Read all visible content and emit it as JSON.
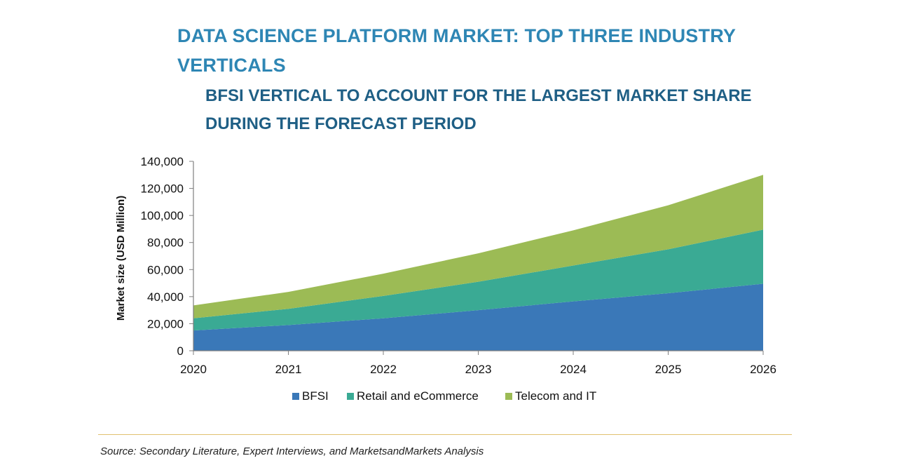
{
  "header": {
    "title": "DATA SCIENCE PLATFORM MARKET: TOP THREE INDUSTRY VERTICALS",
    "subtitle": "BFSI VERTICAL TO ACCOUNT FOR THE LARGEST MARKET SHARE DURING THE FORECAST PERIOD"
  },
  "chart_data": {
    "type": "area",
    "stacked": true,
    "title": "DATA SCIENCE PLATFORM MARKET: TOP THREE INDUSTRY VERTICALS",
    "subtitle": "BFSI VERTICAL TO ACCOUNT FOR THE LARGEST MARKET SHARE DURING THE FORECAST PERIOD",
    "xlabel": "",
    "ylabel": "Market size (USD Million)",
    "categories": [
      "2020",
      "2021",
      "2022",
      "2023",
      "2024",
      "2025",
      "2026"
    ],
    "ylim": [
      0,
      140000
    ],
    "yticks": [
      0,
      20000,
      40000,
      60000,
      80000,
      100000,
      120000,
      140000
    ],
    "ytick_labels": [
      "0",
      "20,000",
      "40,000",
      "60,000",
      "80,000",
      "100,000",
      "120,000",
      "140,000"
    ],
    "series": [
      {
        "name": "BFSI",
        "color": "#3a78b8",
        "values": [
          15000,
          19000,
          24000,
          30000,
          36500,
          42500,
          49500
        ]
      },
      {
        "name": "Retail and eCommerce",
        "color": "#3aaa94",
        "values": [
          9000,
          12000,
          16500,
          21000,
          26500,
          32500,
          40000
        ]
      },
      {
        "name": "Telecom and IT",
        "color": "#9cbb55",
        "values": [
          9500,
          12500,
          16500,
          21000,
          26000,
          32500,
          40500
        ]
      }
    ],
    "legend_position": "bottom",
    "grid": false
  },
  "footer": {
    "source": "Source: Secondary Literature, Expert Interviews, and MarketsandMarkets Analysis"
  }
}
